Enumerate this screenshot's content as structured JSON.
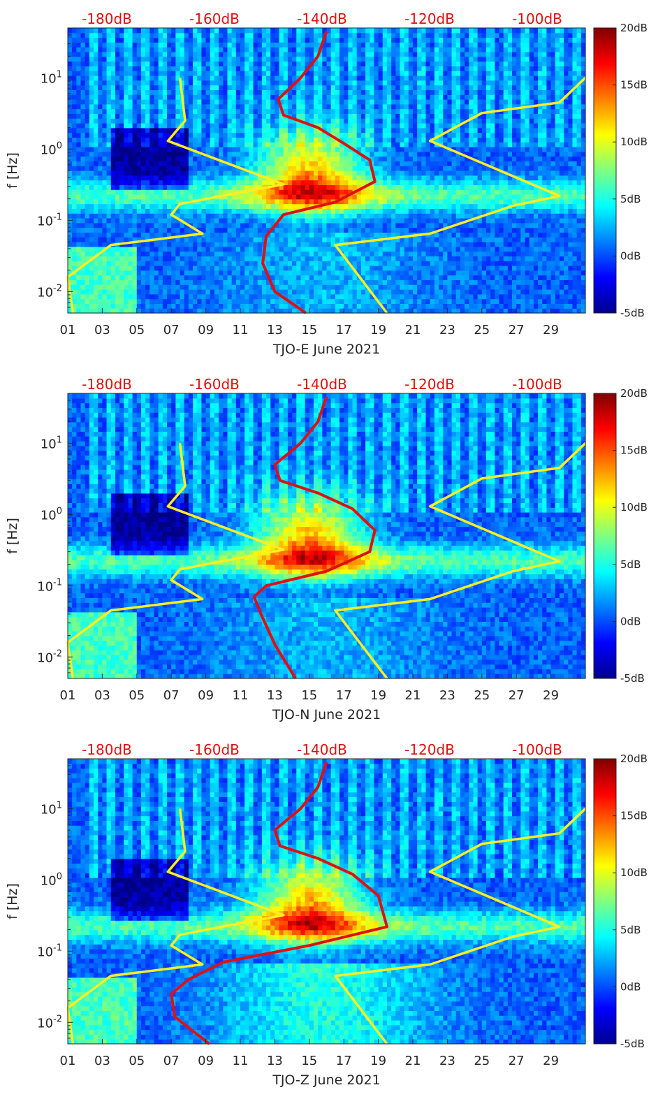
{
  "chart_data": [
    {
      "type": "heatmap",
      "xlabel": "TJO-E June 2021",
      "ylabel": "f [Hz]",
      "x_ticks": [
        "01",
        "03",
        "05",
        "07",
        "09",
        "11",
        "13",
        "15",
        "17",
        "19",
        "21",
        "23",
        "25",
        "27",
        "29"
      ],
      "y_ticks": [
        "10^1",
        "10^0",
        "10^-1",
        "10^-2"
      ],
      "top_axis_labels": [
        "-180dB",
        "-160dB",
        "-140dB",
        "-120dB",
        "-100dB"
      ],
      "colorbar_labels": [
        "20dB",
        "15dB",
        "10dB",
        "5dB",
        "0dB",
        "-5dB"
      ],
      "colorbar_range": [
        -5,
        20
      ],
      "y_scale": "log",
      "ylim": [
        0.005,
        50
      ],
      "xlim": [
        1,
        31
      ],
      "colormap": "jet",
      "model_curves": [
        {
          "color": "#ffee22",
          "points": [
            [
              7.5,
              10
            ],
            [
              7.8,
              2.5
            ],
            [
              6.8,
              1.3
            ],
            [
              13.5,
              0.32
            ],
            [
              7.5,
              0.17
            ],
            [
              7.0,
              0.12
            ],
            [
              8.8,
              0.065
            ],
            [
              3.5,
              0.045
            ],
            [
              1.0,
              0.016
            ],
            [
              1.3,
              0.005
            ]
          ]
        },
        {
          "color": "#ffee22",
          "points": [
            [
              31.0,
              10
            ],
            [
              29.5,
              4.5
            ],
            [
              25.0,
              3.2
            ],
            [
              22.0,
              1.3
            ],
            [
              29.5,
              0.22
            ],
            [
              26.8,
              0.16
            ],
            [
              22.0,
              0.065
            ],
            [
              16.5,
              0.045
            ],
            [
              19.5,
              0.005
            ]
          ]
        }
      ],
      "observed_curve": {
        "color": "#e01010",
        "points": [
          [
            16,
            45
          ],
          [
            15.5,
            20
          ],
          [
            14.5,
            10
          ],
          [
            13.2,
            5
          ],
          [
            13.5,
            3
          ],
          [
            15.5,
            2
          ],
          [
            17.0,
            1.2
          ],
          [
            18.5,
            0.7
          ],
          [
            18.8,
            0.35
          ],
          [
            16.5,
            0.18
          ],
          [
            13.5,
            0.12
          ],
          [
            12.5,
            0.06
          ],
          [
            12.3,
            0.025
          ],
          [
            13.0,
            0.01
          ],
          [
            14.8,
            0.005
          ]
        ]
      }
    },
    {
      "type": "heatmap",
      "xlabel": "TJO-N June 2021",
      "ylabel": "f [Hz]",
      "x_ticks": [
        "01",
        "03",
        "05",
        "07",
        "09",
        "11",
        "13",
        "15",
        "17",
        "19",
        "21",
        "23",
        "25",
        "27",
        "29"
      ],
      "y_ticks": [
        "10^1",
        "10^0",
        "10^-1",
        "10^-2"
      ],
      "top_axis_labels": [
        "-180dB",
        "-160dB",
        "-140dB",
        "-120dB",
        "-100dB"
      ],
      "colorbar_labels": [
        "20dB",
        "15dB",
        "10dB",
        "5dB",
        "0dB",
        "-5dB"
      ],
      "colorbar_range": [
        -5,
        20
      ],
      "y_scale": "log",
      "ylim": [
        0.005,
        50
      ],
      "xlim": [
        1,
        31
      ],
      "colormap": "jet",
      "model_curves": [
        {
          "color": "#ffee22",
          "points": [
            [
              7.5,
              10
            ],
            [
              7.8,
              2.5
            ],
            [
              6.8,
              1.3
            ],
            [
              13.5,
              0.32
            ],
            [
              7.5,
              0.17
            ],
            [
              7.0,
              0.12
            ],
            [
              8.8,
              0.065
            ],
            [
              3.5,
              0.045
            ],
            [
              1.0,
              0.016
            ],
            [
              1.3,
              0.005
            ]
          ]
        },
        {
          "color": "#ffee22",
          "points": [
            [
              31.0,
              10
            ],
            [
              29.5,
              4.5
            ],
            [
              25.0,
              3.2
            ],
            [
              22.0,
              1.3
            ],
            [
              29.5,
              0.22
            ],
            [
              26.8,
              0.16
            ],
            [
              22.0,
              0.065
            ],
            [
              16.5,
              0.045
            ],
            [
              19.5,
              0.005
            ]
          ]
        }
      ],
      "observed_curve": {
        "color": "#e01010",
        "points": [
          [
            16,
            45
          ],
          [
            15.5,
            20
          ],
          [
            14.5,
            10
          ],
          [
            13.0,
            5
          ],
          [
            13.3,
            3
          ],
          [
            15.5,
            2
          ],
          [
            17.5,
            1.2
          ],
          [
            18.8,
            0.6
          ],
          [
            18.5,
            0.3
          ],
          [
            16.0,
            0.16
          ],
          [
            12.5,
            0.1
          ],
          [
            11.8,
            0.07
          ],
          [
            12.2,
            0.04
          ],
          [
            13.0,
            0.015
          ],
          [
            14.2,
            0.005
          ]
        ]
      }
    },
    {
      "type": "heatmap",
      "xlabel": "TJO-Z June 2021",
      "ylabel": "f [Hz]",
      "x_ticks": [
        "01",
        "03",
        "05",
        "07",
        "09",
        "11",
        "13",
        "15",
        "17",
        "19",
        "21",
        "23",
        "25",
        "27",
        "29"
      ],
      "y_ticks": [
        "10^1",
        "10^0",
        "10^-1",
        "10^-2"
      ],
      "top_axis_labels": [
        "-180dB",
        "-160dB",
        "-140dB",
        "-120dB",
        "-100dB"
      ],
      "colorbar_labels": [
        "20dB",
        "15dB",
        "10dB",
        "5dB",
        "0dB",
        "-5dB"
      ],
      "colorbar_range": [
        -5,
        20
      ],
      "y_scale": "log",
      "ylim": [
        0.005,
        50
      ],
      "xlim": [
        1,
        31
      ],
      "colormap": "jet",
      "model_curves": [
        {
          "color": "#ffee22",
          "points": [
            [
              7.5,
              10
            ],
            [
              7.8,
              2.5
            ],
            [
              6.8,
              1.3
            ],
            [
              13.5,
              0.32
            ],
            [
              7.5,
              0.17
            ],
            [
              7.0,
              0.12
            ],
            [
              8.8,
              0.065
            ],
            [
              3.5,
              0.045
            ],
            [
              1.0,
              0.016
            ],
            [
              1.3,
              0.005
            ]
          ]
        },
        {
          "color": "#ffee22",
          "points": [
            [
              31.0,
              10
            ],
            [
              29.5,
              4.5
            ],
            [
              25.0,
              3.2
            ],
            [
              22.0,
              1.3
            ],
            [
              29.5,
              0.22
            ],
            [
              26.8,
              0.16
            ],
            [
              22.0,
              0.065
            ],
            [
              16.5,
              0.045
            ],
            [
              19.5,
              0.005
            ]
          ]
        }
      ],
      "observed_curve": {
        "color": "#e01010",
        "points": [
          [
            16,
            45
          ],
          [
            15.5,
            20
          ],
          [
            14.5,
            10
          ],
          [
            13.0,
            5
          ],
          [
            13.3,
            3
          ],
          [
            15.5,
            2
          ],
          [
            17.5,
            1.2
          ],
          [
            19.0,
            0.6
          ],
          [
            19.5,
            0.22
          ],
          [
            15.0,
            0.12
          ],
          [
            10.0,
            0.07
          ],
          [
            8.0,
            0.04
          ],
          [
            7.0,
            0.025
          ],
          [
            7.2,
            0.012
          ],
          [
            9.2,
            0.005
          ]
        ]
      }
    }
  ]
}
